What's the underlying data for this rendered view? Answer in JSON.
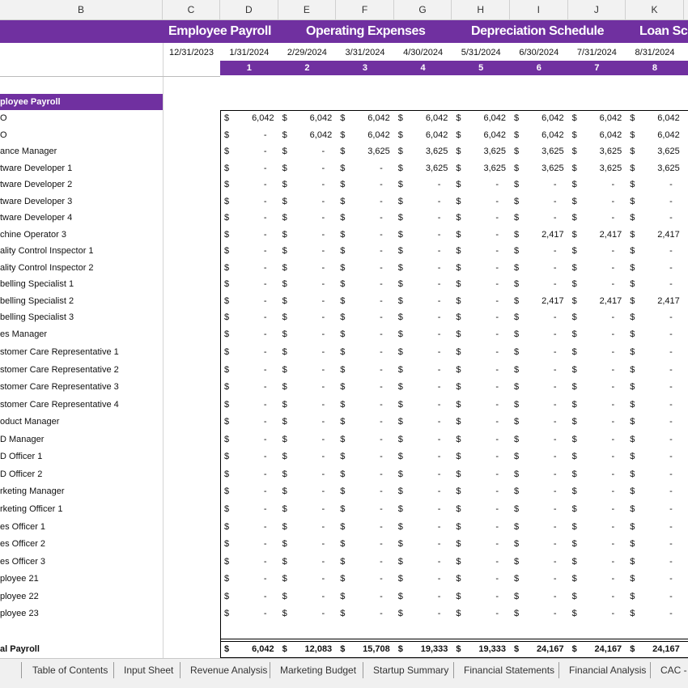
{
  "column_headers": [
    "B",
    "C",
    "D",
    "E",
    "F",
    "G",
    "H",
    "I",
    "J",
    "K"
  ],
  "nav_links": [
    "Employee Payroll",
    "Operating Expenses",
    "Depreciation Schedule",
    "Loan Sch"
  ],
  "dates": [
    "12/31/2023",
    "1/31/2024",
    "2/29/2024",
    "3/31/2024",
    "4/30/2024",
    "5/31/2024",
    "6/30/2024",
    "7/31/2024",
    "8/31/2024"
  ],
  "periods": [
    1,
    2,
    3,
    4,
    5,
    6,
    7,
    8
  ],
  "section_title": "ployee Payroll",
  "currency_symbol": "$",
  "rows": [
    {
      "label": "O",
      "values": [
        "6,042",
        "6,042",
        "6,042",
        "6,042",
        "6,042",
        "6,042",
        "6,042",
        "6,042"
      ]
    },
    {
      "label": "O",
      "values": [
        "-",
        "6,042",
        "6,042",
        "6,042",
        "6,042",
        "6,042",
        "6,042",
        "6,042"
      ]
    },
    {
      "label": "ance Manager",
      "values": [
        "-",
        "-",
        "3,625",
        "3,625",
        "3,625",
        "3,625",
        "3,625",
        "3,625"
      ]
    },
    {
      "label": "tware Developer 1",
      "values": [
        "-",
        "-",
        "-",
        "3,625",
        "3,625",
        "3,625",
        "3,625",
        "3,625"
      ]
    },
    {
      "label": "tware Developer 2",
      "values": [
        "-",
        "-",
        "-",
        "-",
        "-",
        "-",
        "-",
        "-"
      ]
    },
    {
      "label": "tware Developer 3",
      "values": [
        "-",
        "-",
        "-",
        "-",
        "-",
        "-",
        "-",
        "-"
      ]
    },
    {
      "label": "tware Developer 4",
      "values": [
        "-",
        "-",
        "-",
        "-",
        "-",
        "-",
        "-",
        "-"
      ]
    },
    {
      "label": "chine Operator 3",
      "values": [
        "-",
        "-",
        "-",
        "-",
        "-",
        "2,417",
        "2,417",
        "2,417"
      ]
    },
    {
      "label": "ality Control Inspector 1",
      "values": [
        "-",
        "-",
        "-",
        "-",
        "-",
        "-",
        "-",
        "-"
      ]
    },
    {
      "label": "ality Control Inspector 2",
      "values": [
        "-",
        "-",
        "-",
        "-",
        "-",
        "-",
        "-",
        "-"
      ]
    },
    {
      "label": "belling Specialist 1",
      "values": [
        "-",
        "-",
        "-",
        "-",
        "-",
        "-",
        "-",
        "-"
      ]
    },
    {
      "label": "belling Specialist 2",
      "values": [
        "-",
        "-",
        "-",
        "-",
        "-",
        "2,417",
        "2,417",
        "2,417"
      ]
    },
    {
      "label": "belling Specialist 3",
      "values": [
        "-",
        "-",
        "-",
        "-",
        "-",
        "-",
        "-",
        "-"
      ]
    },
    {
      "label": "es Manager",
      "values": [
        "-",
        "-",
        "-",
        "-",
        "-",
        "-",
        "-",
        "-"
      ]
    },
    {
      "label": "stomer Care Representative 1",
      "values": [
        "-",
        "-",
        "-",
        "-",
        "-",
        "-",
        "-",
        "-"
      ]
    },
    {
      "label": "stomer Care Representative 2",
      "values": [
        "-",
        "-",
        "-",
        "-",
        "-",
        "-",
        "-",
        "-"
      ]
    },
    {
      "label": "stomer Care Representative 3",
      "values": [
        "-",
        "-",
        "-",
        "-",
        "-",
        "-",
        "-",
        "-"
      ]
    },
    {
      "label": "stomer Care Representative 4",
      "values": [
        "-",
        "-",
        "-",
        "-",
        "-",
        "-",
        "-",
        "-"
      ]
    },
    {
      "label": "oduct Manager",
      "values": [
        "-",
        "-",
        "-",
        "-",
        "-",
        "-",
        "-",
        "-"
      ]
    },
    {
      "label": "D Manager",
      "values": [
        "-",
        "-",
        "-",
        "-",
        "-",
        "-",
        "-",
        "-"
      ]
    },
    {
      "label": "D Officer 1",
      "values": [
        "-",
        "-",
        "-",
        "-",
        "-",
        "-",
        "-",
        "-"
      ]
    },
    {
      "label": "D Officer 2",
      "values": [
        "-",
        "-",
        "-",
        "-",
        "-",
        "-",
        "-",
        "-"
      ]
    },
    {
      "label": "rketing Manager",
      "values": [
        "-",
        "-",
        "-",
        "-",
        "-",
        "-",
        "-",
        "-"
      ]
    },
    {
      "label": "rketing Officer 1",
      "values": [
        "-",
        "-",
        "-",
        "-",
        "-",
        "-",
        "-",
        "-"
      ]
    },
    {
      "label": "es Officer 1",
      "values": [
        "-",
        "-",
        "-",
        "-",
        "-",
        "-",
        "-",
        "-"
      ]
    },
    {
      "label": "es Officer 2",
      "values": [
        "-",
        "-",
        "-",
        "-",
        "-",
        "-",
        "-",
        "-"
      ]
    },
    {
      "label": "es Officer 3",
      "values": [
        "-",
        "-",
        "-",
        "-",
        "-",
        "-",
        "-",
        "-"
      ]
    },
    {
      "label": "ployee 21",
      "values": [
        "-",
        "-",
        "-",
        "-",
        "-",
        "-",
        "-",
        "-"
      ]
    },
    {
      "label": "ployee 22",
      "values": [
        "-",
        "-",
        "-",
        "-",
        "-",
        "-",
        "-",
        "-"
      ]
    },
    {
      "label": "ployee 23",
      "values": [
        "-",
        "-",
        "-",
        "-",
        "-",
        "-",
        "-",
        "-"
      ]
    }
  ],
  "total": {
    "label": "al Payroll",
    "values": [
      "6,042",
      "12,083",
      "15,708",
      "19,333",
      "19,333",
      "24,167",
      "24,167",
      "24,167"
    ]
  },
  "sheet_tabs": [
    "Table of Contents",
    "Input Sheet",
    "Revenue Analysis",
    "Marketing Budget",
    "Startup Summary",
    "Financial Statements",
    "Financial Analysis",
    "CAC - ("
  ]
}
